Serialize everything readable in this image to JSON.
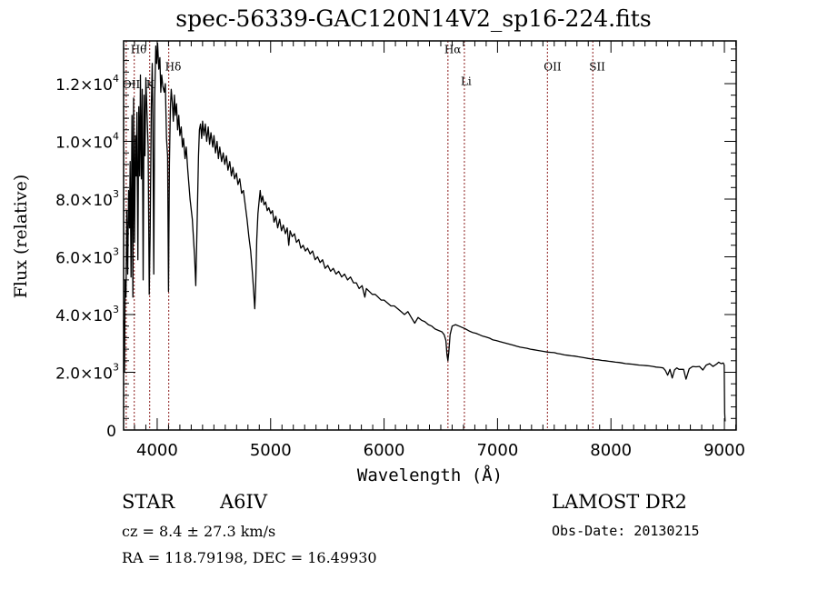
{
  "chart_data": {
    "type": "line",
    "title": "spec-56339-GAC120N14V2_sp16-224.fits",
    "xlabel": "Wavelength (Å)",
    "ylabel": "Flux (relative)",
    "xlim": [
      3704,
      9104
    ],
    "ylim": [
      0,
      13480
    ],
    "grid": false,
    "xticks": [
      {
        "value": 4000,
        "label": "4000"
      },
      {
        "value": 5000,
        "label": "5000"
      },
      {
        "value": 6000,
        "label": "6000"
      },
      {
        "value": 7000,
        "label": "7000"
      },
      {
        "value": 8000,
        "label": "8000"
      },
      {
        "value": 9000,
        "label": "9000"
      }
    ],
    "yticks": [
      {
        "value": 0,
        "label": "0",
        "mant": "0",
        "exp": ""
      },
      {
        "value": 2000,
        "label": "2.0×10³",
        "mant": "2.0×10",
        "exp": "3"
      },
      {
        "value": 4000,
        "label": "4.0×10³",
        "mant": "4.0×10",
        "exp": "3"
      },
      {
        "value": 6000,
        "label": "6.0×10³",
        "mant": "6.0×10",
        "exp": "3"
      },
      {
        "value": 8000,
        "label": "8.0×10³",
        "mant": "8.0×10",
        "exp": "3"
      },
      {
        "value": 10000,
        "label": "1.0×10⁴",
        "mant": "1.0×10",
        "exp": "4"
      },
      {
        "value": 12000,
        "label": "1.2×10⁴",
        "mant": "1.2×10",
        "exp": "4"
      }
    ],
    "lines": [
      {
        "name": "OII",
        "wavelength": 3727,
        "label": "OII",
        "label_flux": 11850
      },
      {
        "name": "Htheta",
        "wavelength": 3798,
        "label": "Hθ",
        "label_flux": 13050
      },
      {
        "name": "K",
        "wavelength": 3934,
        "label": "K",
        "label_flux": 11850
      },
      {
        "name": "Hdelta",
        "wavelength": 4102,
        "label": "Hδ",
        "label_flux": 12450
      },
      {
        "name": "Halpha",
        "wavelength": 6563,
        "label": "Hα",
        "label_flux": 13050
      },
      {
        "name": "Li",
        "wavelength": 6708,
        "label": "Li",
        "label_flux": 11950
      },
      {
        "name": "OII-7325",
        "wavelength": 7440,
        "label": "OII",
        "label_flux": 12450
      },
      {
        "name": "SII",
        "wavelength": 7840,
        "label": "SII",
        "label_flux": 12450
      }
    ],
    "series": [
      {
        "name": "spectrum",
        "points": [
          [
            3704,
            3800
          ],
          [
            3712,
            2000
          ],
          [
            3718,
            5200
          ],
          [
            3725,
            4600
          ],
          [
            3732,
            7600
          ],
          [
            3740,
            5400
          ],
          [
            3748,
            8300
          ],
          [
            3756,
            7000
          ],
          [
            3762,
            9300
          ],
          [
            3770,
            5300
          ],
          [
            3778,
            10900
          ],
          [
            3786,
            4600
          ],
          [
            3792,
            11500
          ],
          [
            3800,
            6500
          ],
          [
            3808,
            10200
          ],
          [
            3815,
            8800
          ],
          [
            3822,
            11000
          ],
          [
            3830,
            5900
          ],
          [
            3838,
            11200
          ],
          [
            3846,
            8800
          ],
          [
            3852,
            12300
          ],
          [
            3860,
            8700
          ],
          [
            3868,
            11800
          ],
          [
            3876,
            5200
          ],
          [
            3884,
            11600
          ],
          [
            3892,
            9500
          ],
          [
            3900,
            12200
          ],
          [
            3910,
            11000
          ],
          [
            3920,
            9800
          ],
          [
            3930,
            4700
          ],
          [
            3938,
            6800
          ],
          [
            3948,
            11200
          ],
          [
            3956,
            12700
          ],
          [
            3962,
            10800
          ],
          [
            3970,
            5400
          ],
          [
            3978,
            11500
          ],
          [
            3988,
            13300
          ],
          [
            3996,
            12700
          ],
          [
            4004,
            13400
          ],
          [
            4014,
            12500
          ],
          [
            4024,
            12900
          ],
          [
            4032,
            11700
          ],
          [
            4040,
            12300
          ],
          [
            4050,
            11900
          ],
          [
            4062,
            11700
          ],
          [
            4072,
            12000
          ],
          [
            4082,
            10100
          ],
          [
            4092,
            9500
          ],
          [
            4100,
            4800
          ],
          [
            4108,
            9200
          ],
          [
            4116,
            11100
          ],
          [
            4124,
            11800
          ],
          [
            4134,
            11300
          ],
          [
            4142,
            10700
          ],
          [
            4152,
            11600
          ],
          [
            4160,
            10900
          ],
          [
            4170,
            11300
          ],
          [
            4180,
            10400
          ],
          [
            4190,
            10900
          ],
          [
            4200,
            10200
          ],
          [
            4212,
            10500
          ],
          [
            4222,
            9800
          ],
          [
            4232,
            10100
          ],
          [
            4246,
            9400
          ],
          [
            4256,
            9800
          ],
          [
            4270,
            9000
          ],
          [
            4290,
            8000
          ],
          [
            4310,
            7300
          ],
          [
            4330,
            6000
          ],
          [
            4340,
            5000
          ],
          [
            4352,
            7200
          ],
          [
            4364,
            9500
          ],
          [
            4372,
            10400
          ],
          [
            4382,
            10600
          ],
          [
            4392,
            10100
          ],
          [
            4400,
            10700
          ],
          [
            4412,
            10200
          ],
          [
            4424,
            10600
          ],
          [
            4436,
            10000
          ],
          [
            4450,
            10500
          ],
          [
            4462,
            9900
          ],
          [
            4474,
            10300
          ],
          [
            4490,
            9800
          ],
          [
            4500,
            10200
          ],
          [
            4514,
            9600
          ],
          [
            4528,
            10000
          ],
          [
            4540,
            9400
          ],
          [
            4552,
            9800
          ],
          [
            4568,
            9300
          ],
          [
            4582,
            9600
          ],
          [
            4596,
            9200
          ],
          [
            4610,
            9500
          ],
          [
            4624,
            9000
          ],
          [
            4640,
            9300
          ],
          [
            4654,
            8800
          ],
          [
            4668,
            9100
          ],
          [
            4682,
            8700
          ],
          [
            4698,
            8900
          ],
          [
            4712,
            8500
          ],
          [
            4728,
            8700
          ],
          [
            4744,
            8200
          ],
          [
            4760,
            8300
          ],
          [
            4776,
            7800
          ],
          [
            4792,
            7300
          ],
          [
            4808,
            6700
          ],
          [
            4824,
            6200
          ],
          [
            4840,
            5400
          ],
          [
            4852,
            4700
          ],
          [
            4860,
            4200
          ],
          [
            4868,
            5000
          ],
          [
            4878,
            6600
          ],
          [
            4888,
            7500
          ],
          [
            4898,
            7900
          ],
          [
            4908,
            8300
          ],
          [
            4918,
            7900
          ],
          [
            4930,
            8100
          ],
          [
            4942,
            7800
          ],
          [
            4956,
            7900
          ],
          [
            4970,
            7600
          ],
          [
            4984,
            7700
          ],
          [
            5000,
            7500
          ],
          [
            5016,
            7600
          ],
          [
            5030,
            7200
          ],
          [
            5046,
            7400
          ],
          [
            5062,
            7000
          ],
          [
            5080,
            7300
          ],
          [
            5096,
            6900
          ],
          [
            5112,
            7100
          ],
          [
            5130,
            6800
          ],
          [
            5146,
            7000
          ],
          [
            5160,
            6400
          ],
          [
            5172,
            6900
          ],
          [
            5190,
            6700
          ],
          [
            5210,
            6800
          ],
          [
            5228,
            6500
          ],
          [
            5248,
            6600
          ],
          [
            5266,
            6300
          ],
          [
            5286,
            6400
          ],
          [
            5306,
            6200
          ],
          [
            5326,
            6300
          ],
          [
            5348,
            6100
          ],
          [
            5370,
            6200
          ],
          [
            5392,
            5900
          ],
          [
            5414,
            6000
          ],
          [
            5436,
            5800
          ],
          [
            5458,
            5900
          ],
          [
            5480,
            5600
          ],
          [
            5504,
            5700
          ],
          [
            5528,
            5500
          ],
          [
            5552,
            5600
          ],
          [
            5576,
            5400
          ],
          [
            5600,
            5500
          ],
          [
            5626,
            5300
          ],
          [
            5652,
            5400
          ],
          [
            5678,
            5200
          ],
          [
            5704,
            5300
          ],
          [
            5730,
            5100
          ],
          [
            5756,
            5100
          ],
          [
            5780,
            4900
          ],
          [
            5806,
            5000
          ],
          [
            5830,
            4600
          ],
          [
            5844,
            4900
          ],
          [
            5870,
            4800
          ],
          [
            5896,
            4700
          ],
          [
            5922,
            4700
          ],
          [
            5948,
            4600
          ],
          [
            5974,
            4500
          ],
          [
            6000,
            4500
          ],
          [
            6030,
            4400
          ],
          [
            6060,
            4300
          ],
          [
            6090,
            4300
          ],
          [
            6120,
            4200
          ],
          [
            6150,
            4100
          ],
          [
            6180,
            4000
          ],
          [
            6210,
            4100
          ],
          [
            6240,
            3900
          ],
          [
            6270,
            3700
          ],
          [
            6300,
            3900
          ],
          [
            6330,
            3800
          ],
          [
            6360,
            3750
          ],
          [
            6390,
            3650
          ],
          [
            6420,
            3600
          ],
          [
            6450,
            3500
          ],
          [
            6480,
            3450
          ],
          [
            6510,
            3400
          ],
          [
            6530,
            3300
          ],
          [
            6545,
            3100
          ],
          [
            6555,
            2600
          ],
          [
            6563,
            2400
          ],
          [
            6571,
            2700
          ],
          [
            6582,
            3300
          ],
          [
            6600,
            3600
          ],
          [
            6630,
            3650
          ],
          [
            6660,
            3600
          ],
          [
            6690,
            3550
          ],
          [
            6720,
            3500
          ],
          [
            6750,
            3430
          ],
          [
            6780,
            3380
          ],
          [
            6810,
            3350
          ],
          [
            6840,
            3300
          ],
          [
            6870,
            3250
          ],
          [
            6900,
            3220
          ],
          [
            6930,
            3180
          ],
          [
            6960,
            3120
          ],
          [
            6990,
            3100
          ],
          [
            7020,
            3060
          ],
          [
            7050,
            3030
          ],
          [
            7080,
            3000
          ],
          [
            7110,
            2970
          ],
          [
            7140,
            2940
          ],
          [
            7170,
            2900
          ],
          [
            7200,
            2870
          ],
          [
            7230,
            2850
          ],
          [
            7260,
            2830
          ],
          [
            7290,
            2800
          ],
          [
            7320,
            2780
          ],
          [
            7350,
            2760
          ],
          [
            7380,
            2740
          ],
          [
            7410,
            2720
          ],
          [
            7440,
            2700
          ],
          [
            7470,
            2690
          ],
          [
            7500,
            2680
          ],
          [
            7530,
            2650
          ],
          [
            7560,
            2630
          ],
          [
            7590,
            2600
          ],
          [
            7620,
            2590
          ],
          [
            7650,
            2570
          ],
          [
            7680,
            2560
          ],
          [
            7710,
            2540
          ],
          [
            7740,
            2520
          ],
          [
            7770,
            2500
          ],
          [
            7800,
            2480
          ],
          [
            7830,
            2460
          ],
          [
            7860,
            2440
          ],
          [
            7890,
            2430
          ],
          [
            7920,
            2410
          ],
          [
            7950,
            2400
          ],
          [
            7980,
            2380
          ],
          [
            8010,
            2370
          ],
          [
            8040,
            2350
          ],
          [
            8070,
            2340
          ],
          [
            8100,
            2320
          ],
          [
            8130,
            2300
          ],
          [
            8160,
            2290
          ],
          [
            8190,
            2280
          ],
          [
            8220,
            2260
          ],
          [
            8250,
            2250
          ],
          [
            8280,
            2240
          ],
          [
            8310,
            2230
          ],
          [
            8340,
            2220
          ],
          [
            8370,
            2200
          ],
          [
            8400,
            2180
          ],
          [
            8430,
            2170
          ],
          [
            8460,
            2150
          ],
          [
            8480,
            2060
          ],
          [
            8500,
            1900
          ],
          [
            8520,
            2100
          ],
          [
            8540,
            1800
          ],
          [
            8560,
            2080
          ],
          [
            8580,
            2150
          ],
          [
            8600,
            2100
          ],
          [
            8640,
            2100
          ],
          [
            8662,
            1760
          ],
          [
            8690,
            2120
          ],
          [
            8720,
            2200
          ],
          [
            8750,
            2190
          ],
          [
            8780,
            2200
          ],
          [
            8810,
            2080
          ],
          [
            8840,
            2250
          ],
          [
            8870,
            2300
          ],
          [
            8900,
            2200
          ],
          [
            8930,
            2280
          ],
          [
            8950,
            2350
          ],
          [
            8970,
            2300
          ],
          [
            8990,
            2320
          ],
          [
            8998,
            2250
          ],
          [
            9002,
            600
          ],
          [
            9006,
            300
          ]
        ]
      }
    ]
  },
  "footer": {
    "object_class": "STAR",
    "subclass": "A6IV",
    "cz": "cz = 8.4 ± 27.3 km/s",
    "radec": "RA = 118.79198, DEC =  16.49930",
    "survey": "LAMOST DR2",
    "obs_date": "Obs-Date: 20130215"
  },
  "colors": {
    "line_marker": "#8b1a1a",
    "spectrum": "#000000",
    "axis": "#000000"
  }
}
